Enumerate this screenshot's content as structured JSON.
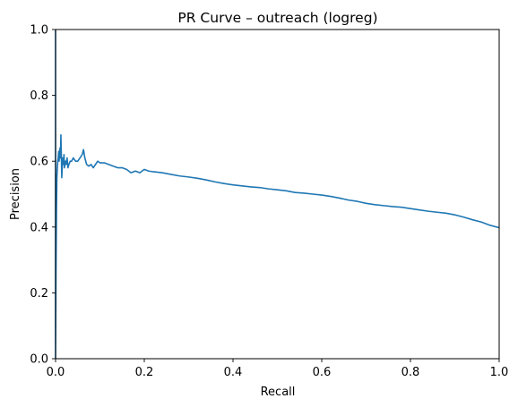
{
  "chart_data": {
    "type": "line",
    "title": "PR Curve – outreach (logreg)",
    "xlabel": "Recall",
    "ylabel": "Precision",
    "xlim": [
      0.0,
      1.0
    ],
    "ylim": [
      0.0,
      1.0
    ],
    "x_ticks": [
      "0.0",
      "0.2",
      "0.4",
      "0.6",
      "0.8",
      "1.0"
    ],
    "y_ticks": [
      "0.0",
      "0.2",
      "0.4",
      "0.6",
      "0.8",
      "1.0"
    ],
    "grid": false,
    "legend": "none",
    "line_color": "#1f77b4",
    "series": [
      {
        "x": [
          0.0,
          0.0,
          0.001,
          0.002,
          0.003,
          0.004,
          0.005,
          0.006,
          0.007,
          0.008,
          0.009,
          0.01,
          0.011,
          0.012,
          0.013,
          0.014,
          0.015,
          0.016,
          0.017,
          0.018,
          0.019,
          0.02,
          0.022,
          0.024,
          0.026,
          0.028,
          0.03,
          0.033,
          0.036,
          0.04,
          0.045,
          0.05,
          0.055,
          0.06,
          0.063,
          0.066,
          0.07,
          0.075,
          0.08,
          0.085,
          0.09,
          0.095,
          0.1,
          0.11,
          0.12,
          0.13,
          0.14,
          0.15,
          0.16,
          0.17,
          0.18,
          0.19,
          0.2,
          0.21,
          0.22,
          0.24,
          0.26,
          0.28,
          0.3,
          0.32,
          0.34,
          0.36,
          0.38,
          0.4,
          0.42,
          0.44,
          0.46,
          0.48,
          0.5,
          0.52,
          0.54,
          0.56,
          0.58,
          0.6,
          0.62,
          0.64,
          0.66,
          0.68,
          0.7,
          0.72,
          0.74,
          0.76,
          0.78,
          0.8,
          0.82,
          0.84,
          0.86,
          0.88,
          0.9,
          0.92,
          0.94,
          0.96,
          0.98,
          1.0
        ],
        "y": [
          1.0,
          0.0,
          0.27,
          0.45,
          0.55,
          0.58,
          0.6,
          0.61,
          0.63,
          0.6,
          0.62,
          0.64,
          0.61,
          0.68,
          0.62,
          0.55,
          0.58,
          0.61,
          0.59,
          0.6,
          0.62,
          0.58,
          0.6,
          0.59,
          0.61,
          0.58,
          0.59,
          0.6,
          0.6,
          0.61,
          0.6,
          0.6,
          0.61,
          0.62,
          0.635,
          0.61,
          0.59,
          0.585,
          0.59,
          0.58,
          0.59,
          0.6,
          0.595,
          0.595,
          0.59,
          0.585,
          0.58,
          0.58,
          0.575,
          0.565,
          0.57,
          0.565,
          0.575,
          0.57,
          0.568,
          0.565,
          0.56,
          0.555,
          0.552,
          0.548,
          0.543,
          0.537,
          0.532,
          0.528,
          0.525,
          0.522,
          0.52,
          0.516,
          0.513,
          0.51,
          0.505,
          0.503,
          0.5,
          0.497,
          0.493,
          0.488,
          0.482,
          0.478,
          0.472,
          0.468,
          0.465,
          0.462,
          0.46,
          0.456,
          0.452,
          0.448,
          0.445,
          0.442,
          0.437,
          0.43,
          0.422,
          0.415,
          0.405,
          0.398
        ]
      }
    ]
  }
}
